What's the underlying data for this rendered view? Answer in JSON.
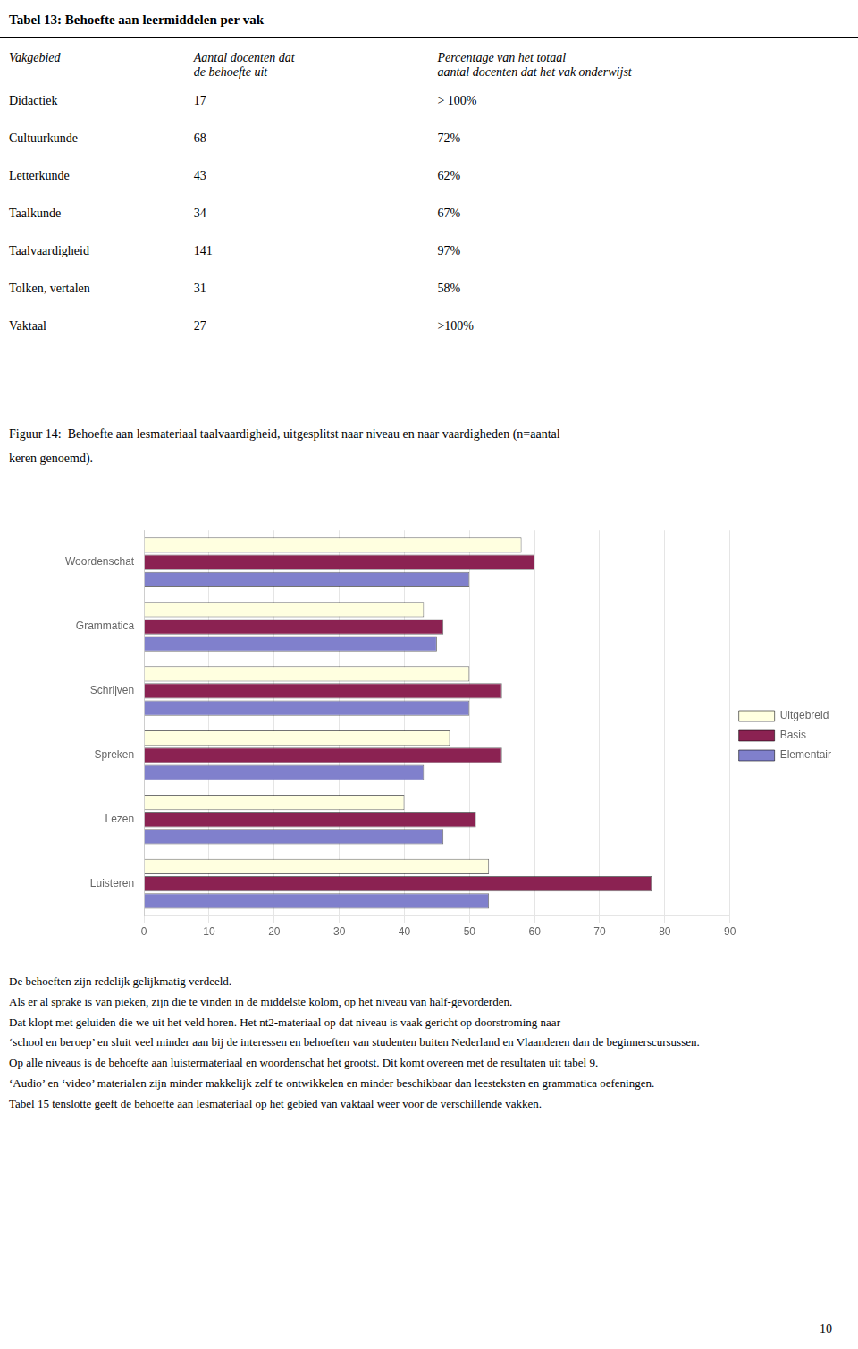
{
  "chart_data": {
    "type": "bar",
    "orientation": "horizontal",
    "title": [
      "Figuur 14:  Behoefte aan lesmateriaal taalvaardigheid, uitgesplitst naar niveau en naar vaardigheden (n=aantal",
      "keren genoemd)."
    ],
    "categories": [
      "Woordenschat",
      "Grammatica",
      "Schrijven",
      "Spreken",
      "Lezen",
      "Luisteren"
    ],
    "series": [
      {
        "name": "Uitgebreid",
        "color": "#FFFFE0",
        "values": [
          58,
          43,
          50,
          47,
          40,
          53
        ]
      },
      {
        "name": "Basis",
        "color": "#8B2252",
        "values": [
          60,
          46,
          55,
          55,
          51,
          78
        ]
      },
      {
        "name": "Elementair",
        "color": "#8080CC",
        "values": [
          50,
          45,
          50,
          43,
          46,
          53
        ]
      }
    ],
    "xlim": [
      0,
      90
    ],
    "xticks": [
      0,
      10,
      20,
      30,
      40,
      50,
      60,
      70,
      80,
      90
    ],
    "grid": true,
    "legend": "right"
  },
  "table": {
    "title": "Tabel 13: Behoefte aan leermiddelen per vak",
    "headers": [
      [
        "Vakgebied"
      ],
      [
        "Aantal docenten dat",
        "de behoefte uit"
      ],
      [
        "Percentage van het totaal",
        "aantal docenten dat het vak onderwijst"
      ]
    ],
    "rows": [
      [
        "Didactiek",
        "17",
        "> 100%"
      ],
      [
        "Cultuurkunde",
        "68",
        "72%"
      ],
      [
        "Letterkunde",
        "43",
        "62%"
      ],
      [
        "Taalkunde",
        "34",
        "67%"
      ],
      [
        "Taalvaardigheid",
        "141",
        "97%"
      ],
      [
        "Tolken, vertalen",
        "31",
        "58%"
      ],
      [
        "Vaktaal",
        "27",
        ">100%"
      ]
    ]
  },
  "text": [
    "De behoeften zijn redelijk gelijkmatig verdeeld.",
    "Als er al sprake is van pieken, zijn die te vinden in de middelste kolom, op het niveau van half-gevorderden.",
    "Dat klopt met geluiden die we uit het veld horen. Het nt2-materiaal op dat niveau is vaak gericht op doorstroming naar",
    "‘school en beroep’ en sluit veel minder aan bij de interessen en behoeften van studenten buiten Nederland en Vlaanderen dan de beginnerscursussen.",
    "Op alle niveaus is de behoefte aan luistermateriaal en woordenschat het grootst. Dit komt overeen met de resultaten uit tabel 9.",
    "‘Audio’ en ‘video’ materialen zijn minder makkelijk zelf te ontwikkelen en minder beschikbaar dan leesteksten en grammatica oefeningen.",
    "Tabel 15 tenslotte geeft de behoefte aan lesmateriaal op het gebied van vaktaal weer voor de verschillende vakken."
  ],
  "page_number": "10"
}
